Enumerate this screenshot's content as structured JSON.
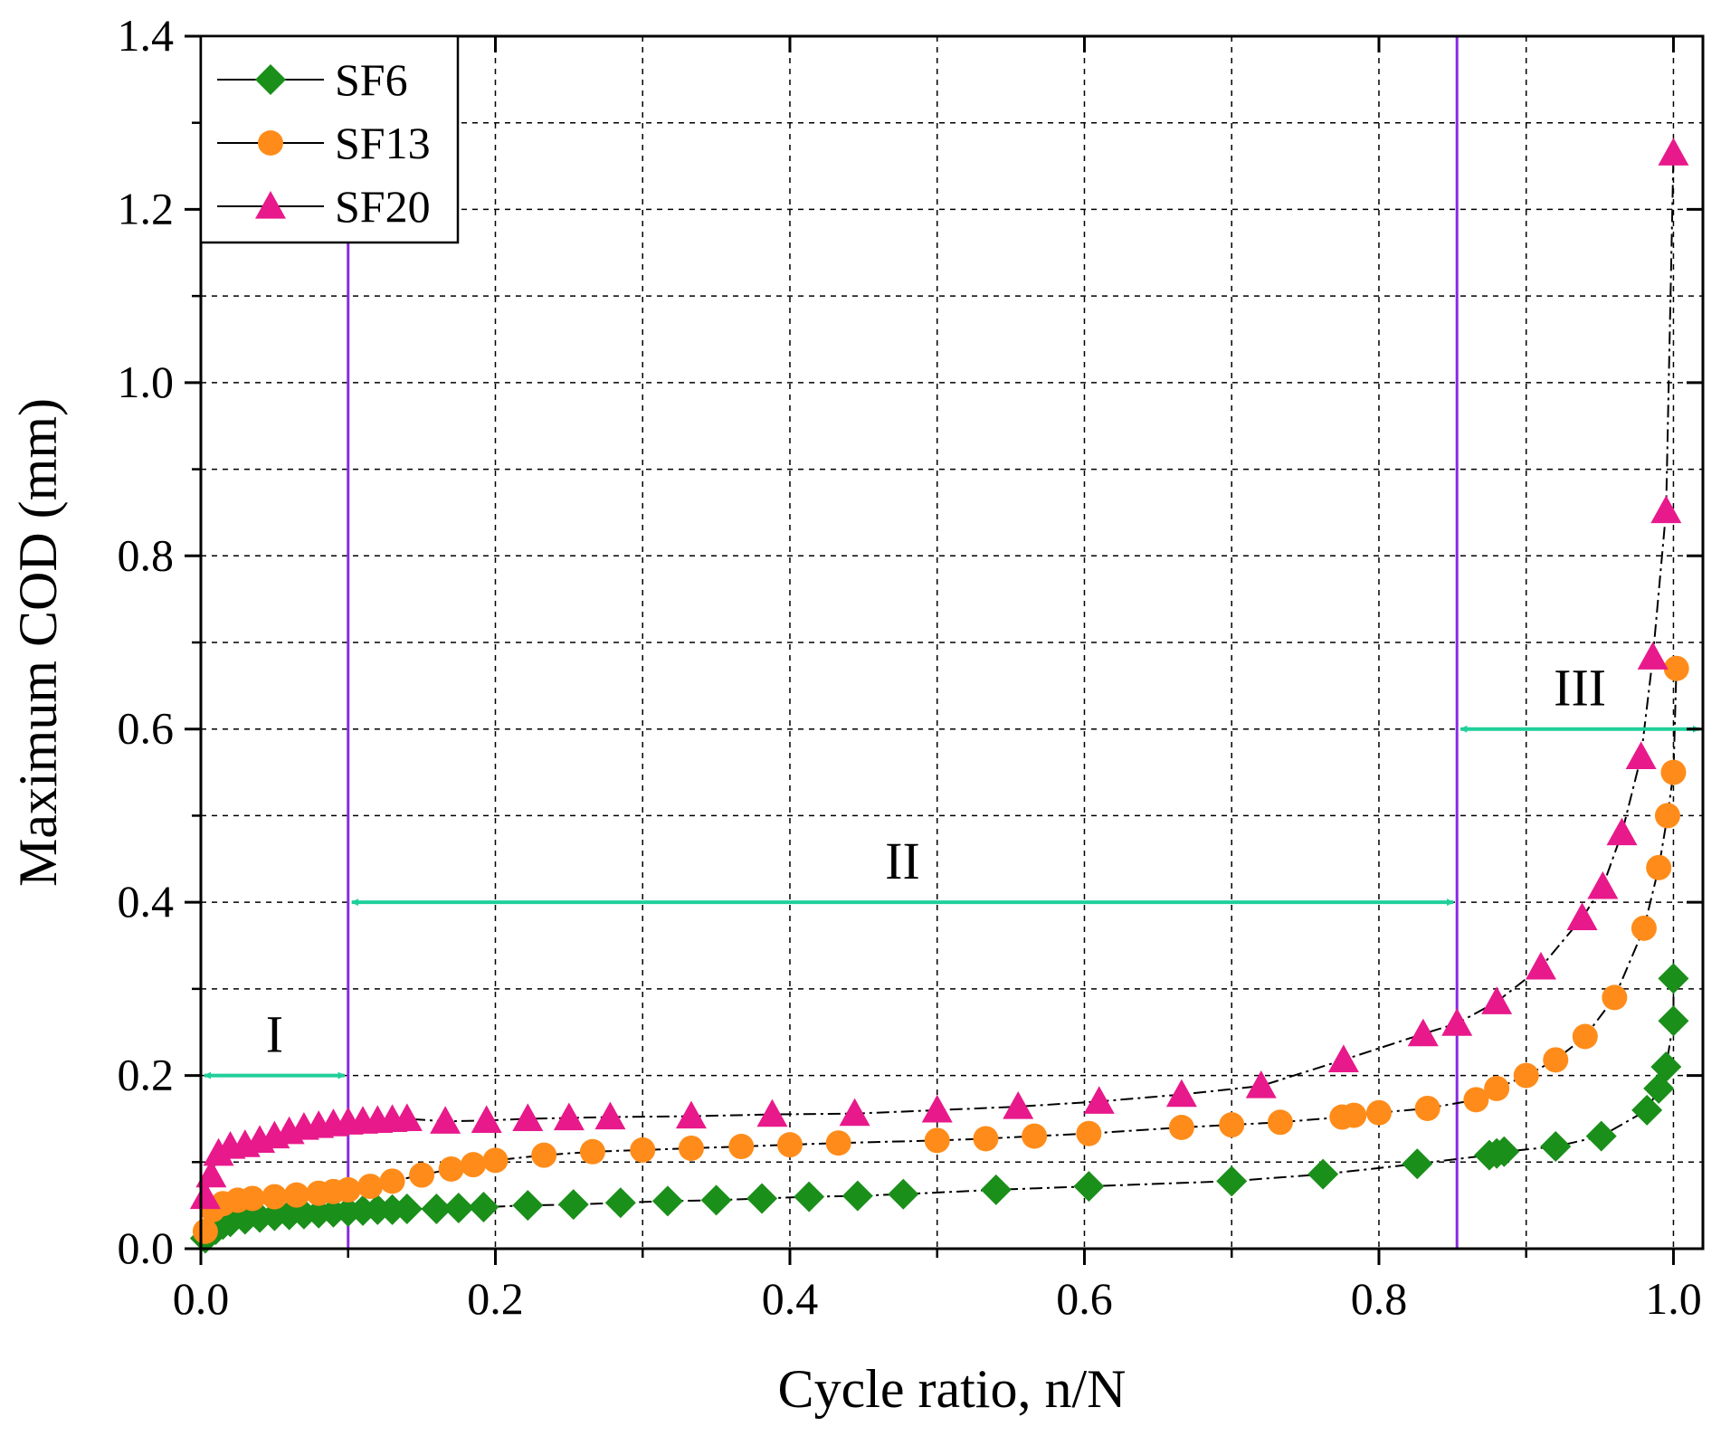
{
  "chart_data": {
    "type": "scatter",
    "xlabel": "Cycle ratio, n/N",
    "ylabel": "Maximum COD (mm)",
    "xlim": [
      0,
      1.02
    ],
    "ylim": [
      0,
      1.4
    ],
    "xticks": [
      "0.0",
      "0.2",
      "0.4",
      "0.6",
      "0.8",
      "1.0"
    ],
    "xtick_values": [
      0,
      0.2,
      0.4,
      0.6,
      0.8,
      1.0
    ],
    "yticks": [
      "0.0",
      "0.2",
      "0.4",
      "0.6",
      "0.8",
      "1.0",
      "1.2",
      "1.4"
    ],
    "ytick_values": [
      0,
      0.2,
      0.4,
      0.6,
      0.8,
      1.0,
      1.2,
      1.4
    ],
    "grid": true,
    "legend_position": "top-left",
    "series": [
      {
        "name": "SF6",
        "marker": "diamond",
        "color": "#1a8f1a",
        "points": [
          [
            0.003,
            0.012
          ],
          [
            0.01,
            0.022
          ],
          [
            0.015,
            0.028
          ],
          [
            0.02,
            0.031
          ],
          [
            0.03,
            0.034
          ],
          [
            0.04,
            0.036
          ],
          [
            0.05,
            0.038
          ],
          [
            0.06,
            0.039
          ],
          [
            0.07,
            0.04
          ],
          [
            0.08,
            0.041
          ],
          [
            0.09,
            0.042
          ],
          [
            0.1,
            0.043
          ],
          [
            0.11,
            0.044
          ],
          [
            0.12,
            0.045
          ],
          [
            0.13,
            0.045
          ],
          [
            0.14,
            0.046
          ],
          [
            0.16,
            0.046
          ],
          [
            0.175,
            0.047
          ],
          [
            0.192,
            0.048
          ],
          [
            0.222,
            0.05
          ],
          [
            0.253,
            0.051
          ],
          [
            0.285,
            0.053
          ],
          [
            0.317,
            0.055
          ],
          [
            0.35,
            0.056
          ],
          [
            0.381,
            0.058
          ],
          [
            0.413,
            0.06
          ],
          [
            0.446,
            0.061
          ],
          [
            0.477,
            0.063
          ],
          [
            0.54,
            0.068
          ],
          [
            0.603,
            0.072
          ],
          [
            0.7,
            0.078
          ],
          [
            0.762,
            0.086
          ],
          [
            0.826,
            0.098
          ],
          [
            0.875,
            0.108
          ],
          [
            0.88,
            0.11
          ],
          [
            0.885,
            0.112
          ],
          [
            0.92,
            0.118
          ],
          [
            0.951,
            0.13
          ],
          [
            0.982,
            0.16
          ],
          [
            0.99,
            0.185
          ],
          [
            0.995,
            0.21
          ],
          [
            1.0,
            0.263
          ],
          [
            1.0,
            0.312
          ]
        ]
      },
      {
        "name": "SF13",
        "marker": "circle",
        "color": "#ff8c1a",
        "points": [
          [
            0.003,
            0.02
          ],
          [
            0.008,
            0.045
          ],
          [
            0.015,
            0.052
          ],
          [
            0.025,
            0.056
          ],
          [
            0.035,
            0.058
          ],
          [
            0.05,
            0.06
          ],
          [
            0.065,
            0.062
          ],
          [
            0.08,
            0.064
          ],
          [
            0.09,
            0.066
          ],
          [
            0.1,
            0.068
          ],
          [
            0.115,
            0.072
          ],
          [
            0.13,
            0.078
          ],
          [
            0.15,
            0.085
          ],
          [
            0.17,
            0.092
          ],
          [
            0.185,
            0.097
          ],
          [
            0.2,
            0.102
          ],
          [
            0.233,
            0.108
          ],
          [
            0.266,
            0.112
          ],
          [
            0.3,
            0.114
          ],
          [
            0.333,
            0.116
          ],
          [
            0.367,
            0.118
          ],
          [
            0.4,
            0.12
          ],
          [
            0.433,
            0.122
          ],
          [
            0.5,
            0.125
          ],
          [
            0.533,
            0.127
          ],
          [
            0.566,
            0.13
          ],
          [
            0.603,
            0.133
          ],
          [
            0.666,
            0.14
          ],
          [
            0.7,
            0.143
          ],
          [
            0.733,
            0.146
          ],
          [
            0.775,
            0.152
          ],
          [
            0.783,
            0.154
          ],
          [
            0.8,
            0.157
          ],
          [
            0.833,
            0.162
          ],
          [
            0.866,
            0.172
          ],
          [
            0.88,
            0.185
          ],
          [
            0.9,
            0.2
          ],
          [
            0.92,
            0.218
          ],
          [
            0.94,
            0.245
          ],
          [
            0.96,
            0.29
          ],
          [
            0.98,
            0.37
          ],
          [
            0.99,
            0.44
          ],
          [
            0.996,
            0.5
          ],
          [
            1.0,
            0.55
          ],
          [
            1.002,
            0.67
          ]
        ]
      },
      {
        "name": "SF20",
        "marker": "triangle",
        "color": "#e8198b",
        "points": [
          [
            0.003,
            0.06
          ],
          [
            0.007,
            0.085
          ],
          [
            0.012,
            0.11
          ],
          [
            0.02,
            0.118
          ],
          [
            0.03,
            0.12
          ],
          [
            0.04,
            0.125
          ],
          [
            0.05,
            0.13
          ],
          [
            0.06,
            0.135
          ],
          [
            0.07,
            0.14
          ],
          [
            0.08,
            0.142
          ],
          [
            0.09,
            0.144
          ],
          [
            0.1,
            0.146
          ],
          [
            0.11,
            0.147
          ],
          [
            0.12,
            0.148
          ],
          [
            0.13,
            0.149
          ],
          [
            0.14,
            0.15
          ],
          [
            0.166,
            0.147
          ],
          [
            0.194,
            0.148
          ],
          [
            0.222,
            0.15
          ],
          [
            0.25,
            0.151
          ],
          [
            0.278,
            0.152
          ],
          [
            0.333,
            0.153
          ],
          [
            0.388,
            0.155
          ],
          [
            0.444,
            0.156
          ],
          [
            0.5,
            0.16
          ],
          [
            0.555,
            0.164
          ],
          [
            0.61,
            0.17
          ],
          [
            0.666,
            0.178
          ],
          [
            0.72,
            0.188
          ],
          [
            0.776,
            0.218
          ],
          [
            0.83,
            0.248
          ],
          [
            0.853,
            0.26
          ],
          [
            0.88,
            0.285
          ],
          [
            0.91,
            0.325
          ],
          [
            0.938,
            0.382
          ],
          [
            0.952,
            0.418
          ],
          [
            0.965,
            0.48
          ],
          [
            0.978,
            0.568
          ],
          [
            0.986,
            0.683
          ],
          [
            0.995,
            0.852
          ],
          [
            1.0,
            1.265
          ]
        ]
      }
    ],
    "vlines": [
      0.1,
      0.853
    ],
    "regions": [
      {
        "label": "I",
        "x_start": 0.0,
        "x_end": 0.1,
        "y": 0.2
      },
      {
        "label": "II",
        "x_start": 0.1,
        "x_end": 0.853,
        "y": 0.4
      },
      {
        "label": "III",
        "x_start": 0.853,
        "x_end": 1.02,
        "y": 0.6
      }
    ],
    "vline_color": "#8a2be2",
    "arrow_color": "#1fcf9a"
  }
}
